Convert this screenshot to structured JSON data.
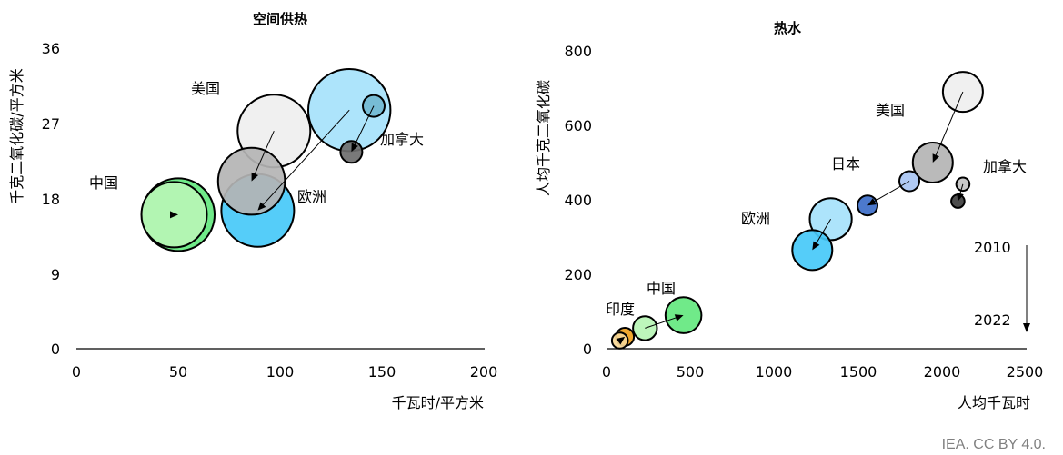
{
  "credit": "IEA. CC BY 4.0.",
  "chart_data": [
    {
      "type": "bubble",
      "title": "空间供热",
      "xlabel": "千瓦时/平方米",
      "ylabel": "千克二氧化碳/平方米",
      "xlim": [
        0,
        200
      ],
      "ylim": [
        0,
        36
      ],
      "xticks": [
        "0",
        "50",
        "100",
        "150",
        "200"
      ],
      "yticks": [
        "0",
        "9",
        "18",
        "27",
        "36"
      ],
      "grid": false,
      "series": [
        {
          "name": "中国",
          "bubbles": [
            {
              "year": "2010",
              "x": 48,
              "y": 16,
              "r": 0.9,
              "color": "#b7f5b5"
            },
            {
              "year": "2022",
              "x": 50,
              "y": 16,
              "r": 1.0,
              "color": "#64e87f"
            }
          ]
        },
        {
          "name": "美国",
          "bubbles": [
            {
              "year": "2010",
              "x": 97,
              "y": 26,
              "r": 1.0,
              "color": "#efefef"
            },
            {
              "year": "2022",
              "x": 86,
              "y": 20,
              "r": 0.92,
              "color": "#b4b4b4"
            }
          ]
        },
        {
          "name": "欧洲",
          "bubbles": [
            {
              "year": "2010",
              "x": 134,
              "y": 28.5,
              "r": 1.13,
              "color": "#a6e2fb"
            },
            {
              "year": "2022",
              "x": 89,
              "y": 16.5,
              "r": 1.0,
              "color": "#46c9f8"
            }
          ]
        },
        {
          "name": "加拿大",
          "bubbles": [
            {
              "year": "2010",
              "x": 146,
              "y": 29,
              "r": 0.3,
              "color": "#72b9d1"
            },
            {
              "year": "2022",
              "x": 135,
              "y": 23.5,
              "r": 0.3,
              "color": "#6e6e6e"
            }
          ]
        }
      ]
    },
    {
      "type": "bubble",
      "title": "热水",
      "xlabel": "人均千瓦时",
      "ylabel": "人均千克二氧化碳",
      "xlim": [
        0,
        2500
      ],
      "ylim": [
        0,
        800
      ],
      "xticks": [
        "0",
        "500",
        "1000",
        "1500",
        "2000",
        "2500"
      ],
      "yticks": [
        "0",
        "200",
        "400",
        "600",
        "800"
      ],
      "grid": false,
      "series": [
        {
          "name": "美国",
          "bubbles": [
            {
              "year": "2010",
              "x": 2130,
              "y": 690,
              "r": 1.0,
              "color": "#efefef"
            },
            {
              "year": "2022",
              "x": 1950,
              "y": 500,
              "r": 1.0,
              "color": "#b4b4b4"
            }
          ]
        },
        {
          "name": "日本",
          "bubbles": [
            {
              "year": "2010",
              "x": 1810,
              "y": 450,
              "r": 0.5,
              "color": "#a9c5f3"
            },
            {
              "year": "2022",
              "x": 1560,
              "y": 385,
              "r": 0.5,
              "color": "#3d6ec9"
            }
          ]
        },
        {
          "name": "加拿大",
          "bubbles": [
            {
              "year": "2010",
              "x": 2130,
              "y": 442,
              "r": 0.33,
              "color": "#c4c4c4"
            },
            {
              "year": "2022",
              "x": 2100,
              "y": 396,
              "r": 0.33,
              "color": "#3f3f3f"
            }
          ]
        },
        {
          "name": "欧洲",
          "bubbles": [
            {
              "year": "2010",
              "x": 1340,
              "y": 348,
              "r": 1.05,
              "color": "#a6e2fb"
            },
            {
              "year": "2022",
              "x": 1230,
              "y": 265,
              "r": 1.0,
              "color": "#46c9f8"
            }
          ]
        },
        {
          "name": "中国",
          "bubbles": [
            {
              "year": "2010",
              "x": 230,
              "y": 55,
              "r": 0.6,
              "color": "#b7f5b5"
            },
            {
              "year": "2022",
              "x": 460,
              "y": 90,
              "r": 0.9,
              "color": "#64e87f"
            }
          ]
        },
        {
          "name": "印度",
          "bubbles": [
            {
              "year": "2010",
              "x": 80,
              "y": 22,
              "r": 0.4,
              "color": "#f7d796"
            },
            {
              "year": "2022",
              "x": 110,
              "y": 32,
              "r": 0.45,
              "color": "#f0a11d"
            }
          ]
        }
      ],
      "legend": {
        "from": "2010",
        "to": "2022"
      }
    }
  ]
}
